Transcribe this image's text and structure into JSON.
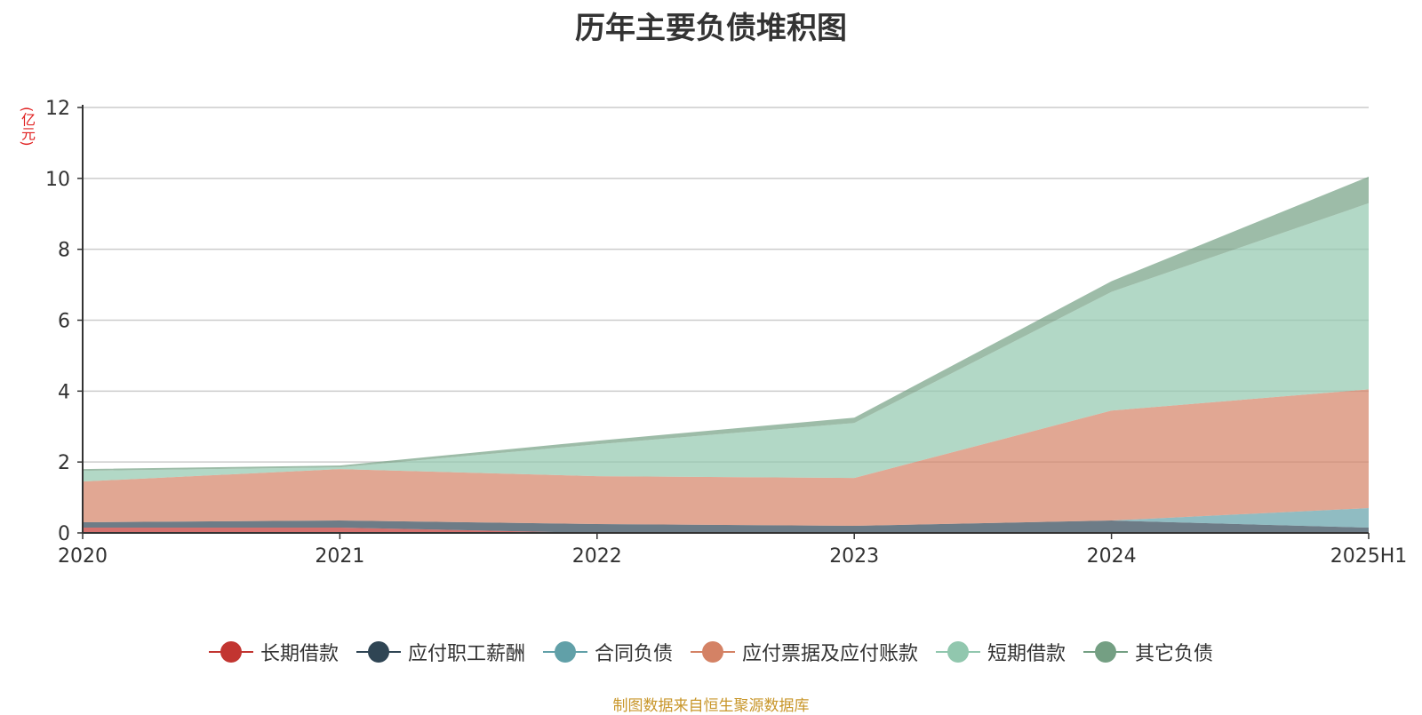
{
  "chart_data": {
    "type": "area",
    "title": "历年主要负债堆积图",
    "unit_label": "(亿元)",
    "categories": [
      "2020",
      "2021",
      "2022",
      "2023",
      "2024",
      "2025H1"
    ],
    "ylim": [
      0,
      12
    ],
    "yticks": [
      "0",
      "2",
      "4",
      "6",
      "8",
      "10",
      "12"
    ],
    "stacked": true,
    "grid": true,
    "legend_position": "bottom",
    "series": [
      {
        "name": "长期借款",
        "color": "#c23531",
        "values": [
          0.15,
          0.15,
          0.0,
          0.0,
          0.0,
          0.0
        ]
      },
      {
        "name": "应付职工薪酬",
        "color": "#2f4554",
        "values": [
          0.15,
          0.2,
          0.25,
          0.2,
          0.35,
          0.15
        ]
      },
      {
        "name": "合同负债",
        "color": "#61a0a8",
        "values": [
          0.0,
          0.0,
          0.0,
          0.0,
          0.0,
          0.55
        ]
      },
      {
        "name": "应付票据及应付账款",
        "color": "#d48265",
        "values": [
          1.15,
          1.45,
          1.35,
          1.35,
          3.1,
          3.35
        ]
      },
      {
        "name": "短期借款",
        "color": "#91c7ae",
        "values": [
          0.3,
          0.05,
          0.9,
          1.55,
          3.35,
          5.25
        ]
      },
      {
        "name": "其它负债",
        "color": "#749f83",
        "values": [
          0.05,
          0.05,
          0.1,
          0.15,
          0.3,
          0.75
        ]
      }
    ]
  },
  "source_note": "制图数据来自恒生聚源数据库"
}
